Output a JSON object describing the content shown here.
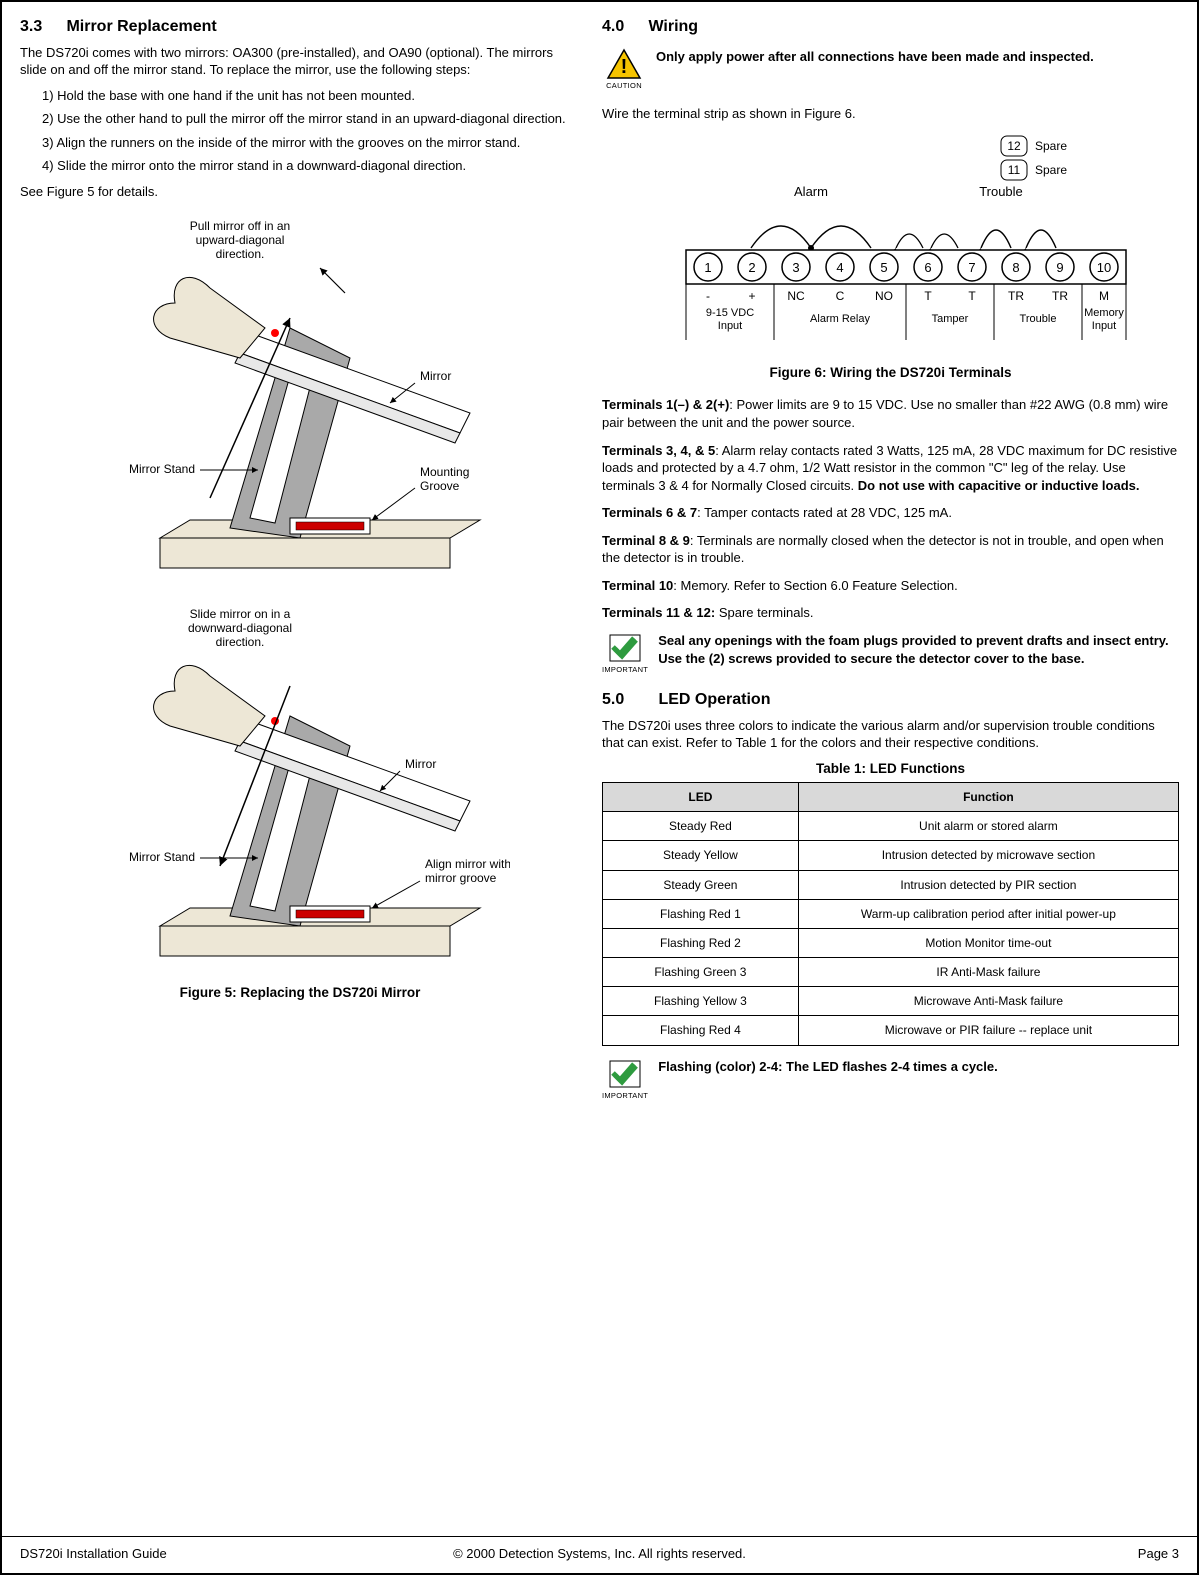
{
  "left": {
    "sec33_num": "3.3",
    "sec33_title": "Mirror Replacement",
    "intro": "The DS720i comes with two mirrors: OA300 (pre-installed), and OA90 (optional). The mirrors slide on and off the mirror stand. To replace the mirror, use the following steps:",
    "steps": [
      "1) Hold the base with one hand if the unit has not been mounted.",
      "2) Use the other hand to pull the mirror off the mirror stand in an upward-diagonal direction.",
      "3) Align the runners on the inside of the mirror with the grooves on the mirror stand.",
      "4) Slide the mirror onto the mirror stand in a downward-diagonal direction."
    ],
    "see_fig5": "See Figure 5 for details.",
    "fig5_upper_labels": {
      "pull_off": "Pull mirror off in an\nupward-diagonal\ndirection.",
      "mirror": "Mirror",
      "mirror_stand": "Mirror Stand",
      "mounting_groove": "Mounting\nGroove"
    },
    "fig5_lower_labels": {
      "slide_on": "Slide mirror on in a\ndownward-diagonal\ndirection.",
      "mirror": "Mirror",
      "mirror_stand": "Mirror Stand",
      "align": "Align mirror with\nmirror groove"
    },
    "fig5_caption": "Figure 5: Replacing the DS720i Mirror",
    "fig_colors": {
      "base_fill": "#ede7d6",
      "panel_fill": "#a9a9a9",
      "mirror_fill": "#ffffff",
      "hand_fill": "#ede7d6",
      "red_dot": "#ff0000",
      "stroke": "#000000"
    }
  },
  "right": {
    "sec40_num": "4.0",
    "sec40_title": "Wiring",
    "caution_label": "CAUTION",
    "caution_text": "Only apply power after all connections have been made and inspected.",
    "wire_intro": "Wire the terminal strip as shown in Figure 6.",
    "terminals": {
      "spare12": "Spare",
      "spare11": "Spare",
      "alarm": "Alarm",
      "trouble": "Trouble",
      "nums": [
        "1",
        "2",
        "3",
        "4",
        "5",
        "6",
        "7",
        "8",
        "9",
        "10"
      ],
      "row1": [
        "-",
        "+",
        "NC",
        "C",
        "NO",
        "T",
        "T",
        "TR",
        "TR",
        "M"
      ],
      "row2_groups": [
        {
          "text": "9-15 VDC\nInput",
          "span": 2
        },
        {
          "text": "Alarm Relay",
          "span": 3
        },
        {
          "text": "Tamper",
          "span": 2
        },
        {
          "text": "Trouble",
          "span": 2
        },
        {
          "text": "Memory\nInput",
          "span": 1
        }
      ]
    },
    "fig6_caption": "Figure 6: Wiring the DS720i Terminals",
    "t12_label": "Terminals 1(–) & 2(+)",
    "t12_text": ":  Power limits are 9 to 15 VDC. Use no smaller than #22 AWG (0.8 mm) wire pair between the unit and the power source.",
    "t345_label": "Terminals 3, 4, & 5",
    "t345_text_a": ":  Alarm relay contacts rated 3 Watts, 125 mA, 28 VDC maximum for DC resistive loads and protected by a 4.7 ohm, 1/2 Watt resistor in the common \"C\" leg of the relay.  Use terminals 3 & 4 for Normally Closed circuits.  ",
    "t345_text_b": "Do not use with capacitive or inductive loads.",
    "t67_label": "Terminals 6 & 7",
    "t67_text": ":  Tamper contacts rated at 28 VDC, 125 mA.",
    "t89_label": "Terminal 8 & 9",
    "t89_text": ": Terminals are normally closed when the detector is not in trouble, and open when the detector is in trouble.",
    "t10_label": "Terminal 10",
    "t10_text": ":  Memory.  Refer to Section 6.0 Feature Selection.",
    "t1112_label": "Terminals 11 & 12:",
    "t1112_text": " Spare terminals.",
    "important_label": "IMPORTANT",
    "important1_text": "Seal any openings with the foam plugs provided to prevent drafts and insect entry. Use the (2) screws provided to secure the detector cover to the base.",
    "sec50_num": "5.0",
    "sec50_title": "LED Operation",
    "led_intro": "The DS720i uses three colors to indicate the various alarm and/or supervision trouble conditions that can exist. Refer to Table 1 for the colors and their respective conditions.",
    "table1_title": "Table 1: LED Functions",
    "table1_headers": [
      "LED",
      "Function"
    ],
    "table1_rows": [
      [
        "Steady Red",
        "Unit alarm or stored alarm"
      ],
      [
        "Steady Yellow",
        "Intrusion detected by microwave section"
      ],
      [
        "Steady Green",
        "Intrusion detected by PIR section"
      ],
      [
        "Flashing Red 1",
        "Warm-up calibration period after initial power-up"
      ],
      [
        "Flashing Red 2",
        "Motion Monitor time-out"
      ],
      [
        "Flashing Green 3",
        "IR Anti-Mask failure"
      ],
      [
        "Flashing Yellow 3",
        "Microwave Anti-Mask failure"
      ],
      [
        "Flashing Red 4",
        "Microwave or PIR failure -- replace unit"
      ]
    ],
    "important2_text": "Flashing (color) 2-4: The LED flashes 2-4 times a cycle."
  },
  "footer": {
    "left": "DS720i Installation Guide",
    "center": "© 2000 Detection Systems, Inc. All rights reserved.",
    "right": "Page 3"
  },
  "colors": {
    "caution_yellow": "#f6c400",
    "important_green": "#2e9b3f",
    "table_header_bg": "#d9d9d9"
  }
}
